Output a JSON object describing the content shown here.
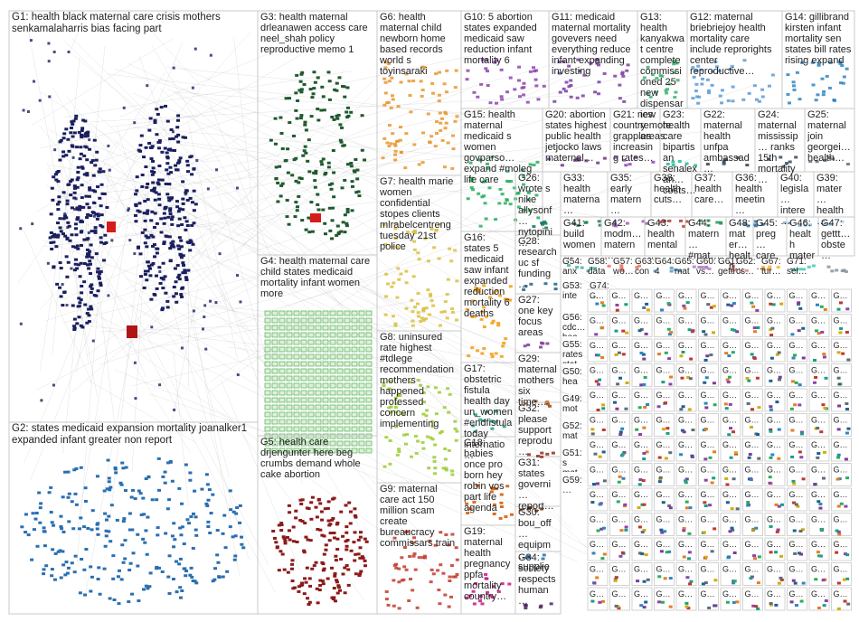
{
  "groups": [
    {
      "id": "G1",
      "label": "G1: health black maternal care crisis mothers senkamalaharris bias facing part",
      "color": "#1a1f5e"
    },
    {
      "id": "G2",
      "label": "G2: states medicaid expansion mortality joanalker1 expanded infant greater non report",
      "color": "#2a6fb0"
    },
    {
      "id": "G3",
      "label": "G3: health maternal drleanawen access care neel_shah policy reproductive memo 1",
      "color": "#1f5a2e"
    },
    {
      "id": "G4",
      "label": "G4: health maternal care child states medicaid mortality infant women more",
      "color": "#4caf50"
    },
    {
      "id": "G5",
      "label": "G5: health care drjengunter here beg crumbs demand whole cake abortion",
      "color": "#8b1a1a"
    },
    {
      "id": "G6",
      "label": "G6: health maternal child newborn home based records world s toyinsaraki",
      "color": "#e8962a"
    },
    {
      "id": "G7",
      "label": "G7: health marie women confidential stopes clients mlrabelcentreng tuesday 21st police",
      "color": "#d9c040"
    },
    {
      "id": "G8",
      "label": "G8: uninsured rate highest #tdlege recommendation mothers happened professed concern implementing",
      "color": "#9acd32"
    },
    {
      "id": "G9",
      "label": "G9: maternal care act 150 million scam create bureaucracy commissars train",
      "color": "#c0392b"
    },
    {
      "id": "G10",
      "label": "G10: 5 abortion states expanded medicaid saw reduction infant mortality 6",
      "color": "#8e44ad"
    },
    {
      "id": "G11",
      "label": "G11: medicaid maternal mortality govevers need everything reduce infant expanding investing",
      "color": "#7b3fa0"
    },
    {
      "id": "G12",
      "label": "G12: maternal briebriejoy health mortality care include reprorights center reproductive…",
      "color": "#5b9bd5"
    },
    {
      "id": "G13",
      "label": "G13: health kanyakwat centre complete commissioned 25 new dispensaries remote areas",
      "color": "#3cb371"
    },
    {
      "id": "G14",
      "label": "G14: gillibrand kirsten infant mortality sen states bill rates rising expand",
      "color": "#2e86c1"
    },
    {
      "id": "G15",
      "label": "G15: health maternal medicaid s women govparso… expand #moleg life care",
      "color": "#27ae60"
    },
    {
      "id": "G16",
      "label": "G16: states 5 medicaid saw infant expanded reduction mortality 6 deaths",
      "color": "#f39c12"
    },
    {
      "id": "G17",
      "label": "G17: obstetric fistula health day un_women #endfistula today internatio…",
      "color": "#16a085"
    },
    {
      "id": "G18",
      "label": "G18: babies once pro born hey robin vos part life agenda",
      "color": "#d35400"
    },
    {
      "id": "G19",
      "label": "G19: maternal health pregnancy ppfa mortality country…",
      "color": "#c71585"
    },
    {
      "id": "G20",
      "label": "G20: abortion states highest public health jetjocko laws maternal…",
      "color": "#6c3483"
    },
    {
      "id": "G21",
      "label": "G21: new country grapples increasing rates…",
      "color": "#8e44ad"
    },
    {
      "id": "G22",
      "label": "G22: maternal health unfpa ambassad…",
      "color": "#2c3e50"
    },
    {
      "id": "G23",
      "label": "G23: health care bipartisan senalexan… costs…",
      "color": "#1abc9c"
    },
    {
      "id": "G24",
      "label": "G24: maternal mississip… ranks 15th mortality…",
      "color": "#34495e"
    },
    {
      "id": "G25",
      "label": "G25: maternal join georgei… health…",
      "color": "#5d6d7e"
    },
    {
      "id": "G26",
      "label": "G26: wrote s nike allysonf… nytopini…",
      "color": "#117864"
    },
    {
      "id": "G27",
      "label": "G27: one key focus areas",
      "color": "#7d3c98"
    },
    {
      "id": "G28",
      "label": "G28: research uc sf funding…",
      "color": "#1f618d"
    },
    {
      "id": "G29",
      "label": "G29: maternal mothers six time…",
      "color": "#a04000"
    },
    {
      "id": "G30",
      "label": "G30: bou_off… equipm… supplie…",
      "color": "#2471a3"
    },
    {
      "id": "G31",
      "label": "G31: states governi… report…",
      "color": "#6e2c00"
    },
    {
      "id": "G32",
      "label": "G32: please support reprodu…",
      "color": "#922b21"
    },
    {
      "id": "G33",
      "label": "G33: health materna…",
      "color": "#1e8449"
    },
    {
      "id": "G34",
      "label": "G34: society respects human…",
      "color": "#4a235a"
    },
    {
      "id": "G35",
      "label": "G35: early matern…",
      "color": "#9b59b6"
    },
    {
      "id": "G36",
      "label": "G36: health meetin…",
      "color": "#2874a6"
    },
    {
      "id": "G37",
      "label": "G37: health care…",
      "color": "#229954"
    },
    {
      "id": "G38",
      "label": "G38: health cuts…",
      "color": "#b03a2e"
    },
    {
      "id": "G39",
      "label": "G39: mater… health…",
      "color": "#a9cce3"
    },
    {
      "id": "G40",
      "label": "G40: legisla… intere…",
      "color": "#7fb3d5"
    },
    {
      "id": "G41",
      "label": "G41: build women…",
      "color": "#45b39d"
    },
    {
      "id": "G42",
      "label": "G42: modm… matern…",
      "color": "#ec7063"
    },
    {
      "id": "G43",
      "label": "G43: health mental…",
      "color": "#5499c7"
    },
    {
      "id": "G44",
      "label": "G44: matern… #mat…",
      "color": "#af7ac5"
    },
    {
      "id": "G45",
      "label": "G45: preg… care…",
      "color": "#f5b041"
    },
    {
      "id": "G46",
      "label": "G46: health mater…",
      "color": "#48c9b0"
    },
    {
      "id": "G47",
      "label": "G47: gettt… obste…",
      "color": "#85929e"
    },
    {
      "id": "G48",
      "label": "G48: mater… health…",
      "color": "#d98880"
    }
  ],
  "small_labels": [
    "G54: anx… exp…",
    "G58: data…",
    "G57: wo…",
    "G63: con…",
    "G64: 4",
    "G65: mat…",
    "G60: vs…",
    "G61: getti…",
    "G62: cs…",
    "G67: tur…",
    "G71: sel…",
    "G53: inte… gov…",
    "G74: …",
    "G56: cdc… hea…",
    "G55: rates stat…",
    "G50: hea… thro…",
    "G49: mot… any…",
    "G52: mat… hea…",
    "G51: s mat…",
    "G59: …"
  ],
  "tile_label": "G…"
}
